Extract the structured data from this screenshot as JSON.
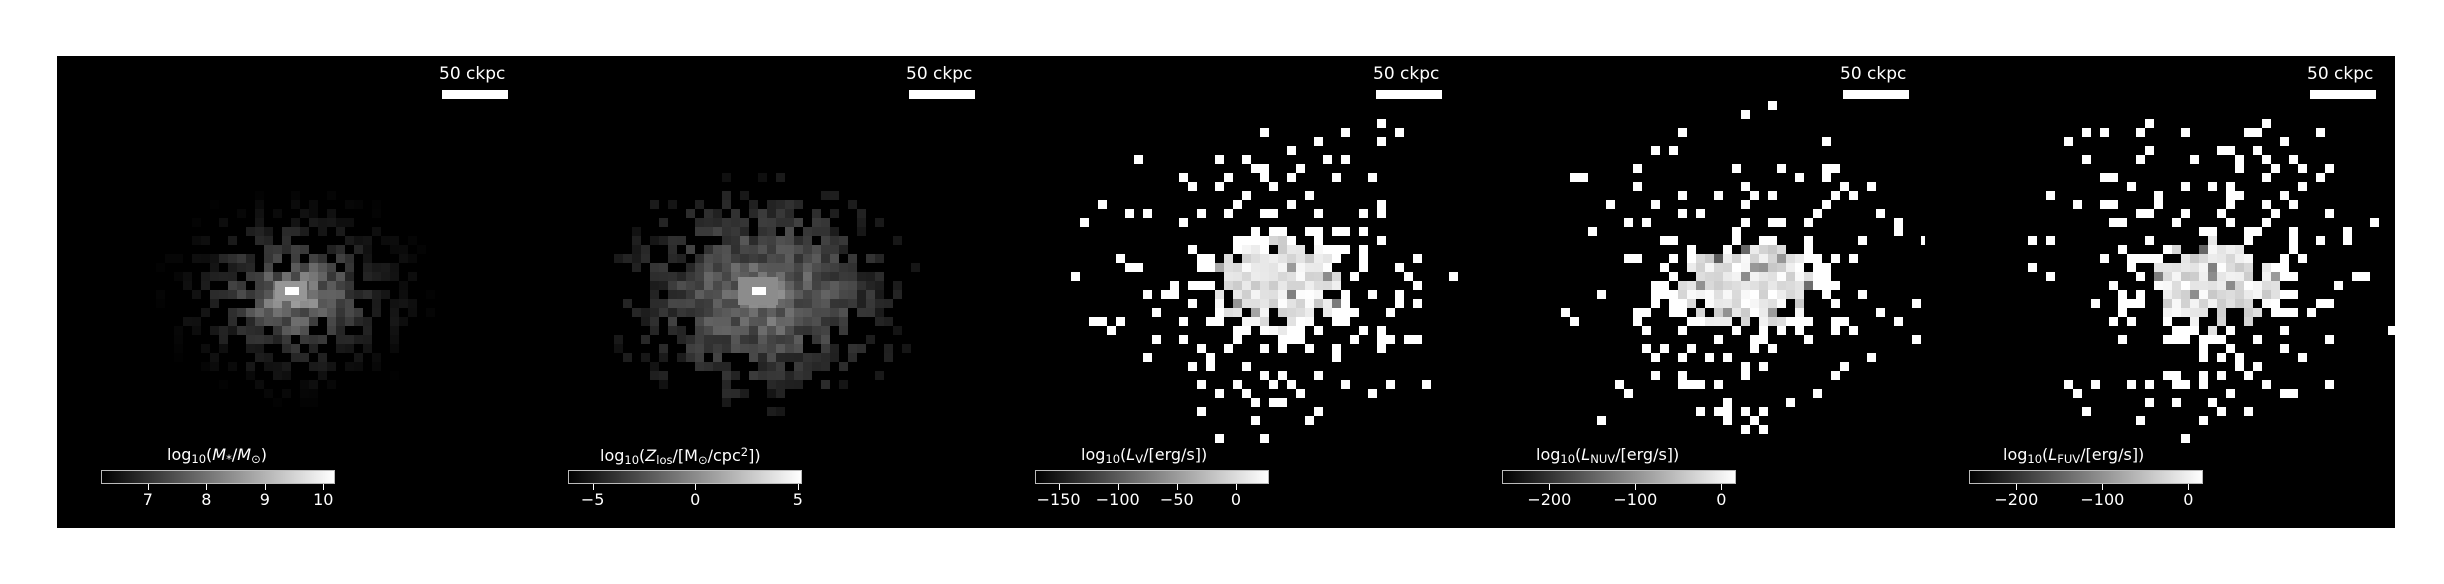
{
  "scale_bar_label": "50 ckpc",
  "panels": [
    {
      "id": "stellar-mass",
      "cbar_parts": [
        "log",
        "10",
        "(",
        "M",
        "*",
        "/",
        "M",
        "⊙",
        ")"
      ],
      "ticks": [
        "7",
        "8",
        "9",
        "10"
      ],
      "cbar_range": [
        6.2,
        10.2
      ],
      "tick_values": [
        7,
        8,
        9,
        10
      ]
    },
    {
      "id": "metallicity",
      "cbar_parts": [
        "log",
        "10",
        "(",
        "Z",
        "los",
        "/[M",
        "⊙",
        "/cpc",
        "2",
        "])"
      ],
      "ticks": [
        "−5",
        "0",
        "5"
      ],
      "cbar_range": [
        -6.2,
        5.2
      ],
      "tick_values": [
        -5,
        0,
        5
      ]
    },
    {
      "id": "luminosity-v",
      "cbar_parts": [
        "log",
        "10",
        "(",
        "L",
        "V",
        "/[erg/s])"
      ],
      "ticks": [
        "−150",
        "−100",
        "−50",
        "0"
      ],
      "cbar_range": [
        -170,
        28
      ],
      "tick_values": [
        -150,
        -100,
        -50,
        0
      ]
    },
    {
      "id": "luminosity-nuv",
      "cbar_parts": [
        "log",
        "10",
        "(",
        "L",
        "NUV",
        "/[erg/s])"
      ],
      "ticks": [
        "−200",
        "−100",
        "0"
      ],
      "cbar_range": [
        -255,
        17
      ],
      "tick_values": [
        -200,
        -100,
        0
      ]
    },
    {
      "id": "luminosity-fuv",
      "cbar_parts": [
        "log",
        "10",
        "(",
        "L",
        "FUV",
        "/[erg/s])"
      ],
      "ticks": [
        "−200",
        "−100",
        "0"
      ],
      "cbar_range": [
        -255,
        17
      ],
      "tick_values": [
        -200,
        -100,
        0
      ]
    }
  ]
}
